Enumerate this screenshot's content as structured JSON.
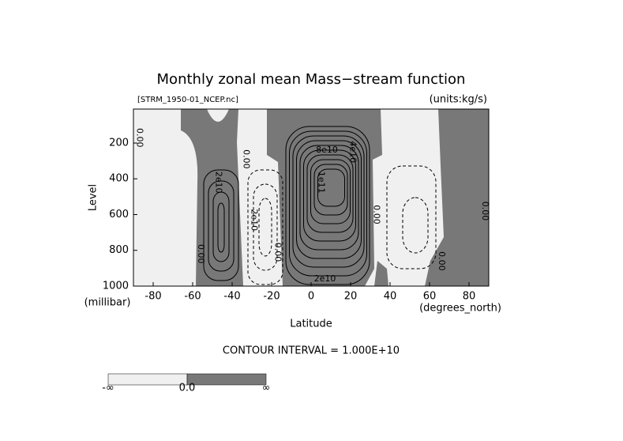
{
  "chart_data": {
    "type": "contour",
    "title": "Monthly zonal mean Mass−stream function",
    "subtitle_left": "[STRM_1950-01_NCEP.nc]",
    "subtitle_right": "(units:kg/s)",
    "x_label": "Latitude",
    "x_unit": "(degrees_north)",
    "y_label": "Level",
    "y_unit": "(millibar)",
    "xlim": [
      -90,
      90
    ],
    "xticks": [
      -80,
      -60,
      -40,
      -20,
      0,
      20,
      40,
      60,
      80
    ],
    "ylim": [
      1000,
      10
    ],
    "yticks": [
      200,
      400,
      600,
      800,
      1000
    ],
    "contour_interval_text": "CONTOUR INTERVAL = 1.000E+10",
    "contour_labels": [
      {
        "text": "0.00",
        "lat": -87,
        "level": 170
      },
      {
        "text": "2e10",
        "lat": -47,
        "level": 420
      },
      {
        "text": "0.00",
        "lat": -56,
        "level": 820
      },
      {
        "text": "0.00",
        "lat": -33,
        "level": 290
      },
      {
        "text": "2e10",
        "lat": -29,
        "level": 630
      },
      {
        "text": "0.00",
        "lat": -17,
        "level": 810
      },
      {
        "text": "1e11",
        "lat": 5,
        "level": 420
      },
      {
        "text": "8e10",
        "lat": 8,
        "level": 240
      },
      {
        "text": "4e10",
        "lat": 21,
        "level": 250
      },
      {
        "text": "2e10",
        "lat": 7,
        "level": 960
      },
      {
        "text": "0.00",
        "lat": 33,
        "level": 600
      },
      {
        "text": "0.00",
        "lat": 66,
        "level": 860
      },
      {
        "text": "0.00",
        "lat": 88,
        "level": 580
      }
    ],
    "shade_colors": {
      "negative": "#f0f0f0",
      "positive": "#787878"
    },
    "colorbar": {
      "colors": [
        "#f0f0f0",
        "#787878"
      ],
      "labels": [
        "-∞",
        "0.0",
        "∞"
      ]
    }
  }
}
